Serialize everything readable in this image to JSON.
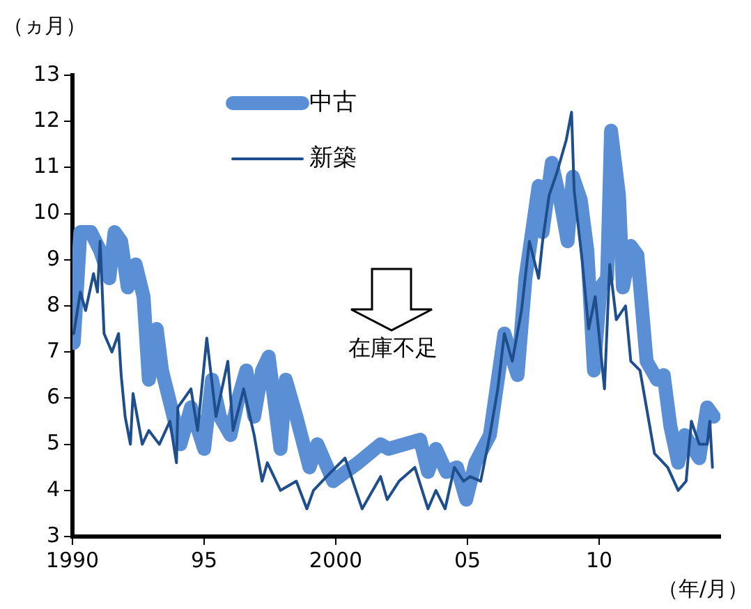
{
  "chart_data": {
    "type": "line",
    "ylabel": "（ヵ月）",
    "xlabel": "（年/月）",
    "annotations": [
      "在庫不足"
    ],
    "xlim": [
      1990,
      2014.6
    ],
    "xticks": [
      1990,
      {
        "value": 1995,
        "label": "95"
      },
      2000,
      {
        "value": 2005,
        "label": "05"
      },
      {
        "value": 2010,
        "label": "10"
      }
    ],
    "ylim": [
      3,
      13
    ],
    "yticks": [
      3,
      4,
      5,
      6,
      7,
      8,
      9,
      10,
      11,
      12,
      13
    ],
    "grid": false,
    "legend": "top left",
    "marker": "none",
    "line_style": "solid",
    "series": [
      {
        "name": "中古",
        "color": "#5a8fd6",
        "x": [
          1990.05,
          1990.3,
          1990.7,
          1991.05,
          1991.4,
          1991.6,
          1991.85,
          1992.1,
          1992.4,
          1992.7,
          1992.9,
          1993.2,
          1993.4,
          1993.75,
          1994.1,
          1994.5,
          1995.0,
          1995.3,
          1995.6,
          1996.0,
          1996.3,
          1996.6,
          1996.9,
          1997.2,
          1997.45,
          1997.9,
          1998.1,
          1998.5,
          1999.0,
          1999.3,
          1999.9,
          2000.85,
          2001.7,
          2002.0,
          2002.6,
          2003.2,
          2003.5,
          2003.8,
          2004.2,
          2004.6,
          2004.95,
          2005.3,
          2005.85,
          2006.4,
          2006.9,
          2007.2,
          2007.45,
          2007.7,
          2007.85,
          2008.2,
          2008.55,
          2008.8,
          2009.0,
          2009.3,
          2009.55,
          2009.8,
          2010.05,
          2010.3,
          2010.45,
          2010.75,
          2010.9,
          2011.2,
          2011.45,
          2011.8,
          2012.2,
          2012.45,
          2012.7,
          2013.0,
          2013.25,
          2013.8,
          2014.1,
          2014.35
        ],
        "values": [
          7.2,
          9.6,
          9.6,
          9.2,
          8.6,
          9.6,
          9.4,
          8.4,
          8.9,
          8.2,
          6.4,
          7.5,
          6.6,
          5.8,
          5.0,
          5.8,
          4.9,
          6.4,
          5.6,
          5.2,
          6.0,
          6.6,
          5.6,
          6.6,
          6.9,
          4.9,
          6.4,
          5.6,
          4.5,
          5.0,
          4.2,
          4.6,
          5.0,
          4.9,
          5.0,
          5.1,
          4.4,
          4.9,
          4.4,
          4.5,
          3.8,
          4.6,
          5.2,
          7.4,
          6.5,
          8.6,
          9.6,
          10.6,
          9.6,
          11.1,
          10.2,
          9.4,
          10.8,
          10.3,
          9.2,
          6.6,
          8.4,
          8.6,
          11.8,
          10.4,
          8.4,
          9.3,
          9.1,
          6.8,
          6.4,
          6.5,
          5.4,
          4.6,
          5.2,
          4.7,
          5.8,
          5.6
        ]
      },
      {
        "name": "新築",
        "color": "#1f4e8c",
        "x": [
          1990.05,
          1990.3,
          1990.5,
          1990.8,
          1990.95,
          1991.05,
          1991.2,
          1991.5,
          1991.75,
          1991.85,
          1992.0,
          1992.2,
          1992.3,
          1992.65,
          1992.9,
          1993.3,
          1993.7,
          1993.95,
          1994.0,
          1994.5,
          1994.75,
          1995.1,
          1995.45,
          1995.9,
          1996.1,
          1996.5,
          1996.9,
          1997.2,
          1997.4,
          1997.9,
          1998.5,
          1998.9,
          1999.15,
          1999.65,
          2000.35,
          2001.0,
          2001.7,
          2001.95,
          2002.4,
          2003.0,
          2003.5,
          2003.8,
          2004.15,
          2004.5,
          2004.85,
          2005.1,
          2005.5,
          2005.85,
          2006.15,
          2006.4,
          2006.7,
          2007.05,
          2007.35,
          2007.7,
          2007.85,
          2008.1,
          2008.4,
          2008.75,
          2008.95,
          2009.05,
          2009.35,
          2009.6,
          2009.85,
          2010.2,
          2010.4,
          2010.65,
          2011.0,
          2011.2,
          2011.55,
          2012.1,
          2012.6,
          2013.0,
          2013.3,
          2013.5,
          2013.8,
          2014.1,
          2014.2,
          2014.3
        ],
        "values": [
          7.4,
          8.3,
          7.9,
          8.7,
          8.3,
          9.4,
          7.4,
          7.0,
          7.4,
          6.5,
          5.6,
          5.0,
          6.1,
          5.0,
          5.3,
          5.0,
          5.5,
          4.6,
          5.8,
          6.2,
          5.3,
          7.3,
          5.6,
          6.8,
          5.3,
          6.2,
          5.2,
          4.2,
          4.6,
          4.0,
          4.2,
          3.6,
          4.0,
          4.3,
          4.7,
          3.6,
          4.3,
          3.8,
          4.2,
          4.5,
          3.6,
          4.0,
          3.6,
          4.5,
          4.2,
          4.3,
          4.2,
          5.2,
          6.2,
          7.4,
          6.8,
          7.9,
          9.4,
          8.6,
          9.4,
          10.4,
          10.9,
          11.6,
          12.2,
          10.5,
          9.0,
          7.5,
          8.2,
          6.2,
          8.9,
          7.7,
          8.0,
          6.8,
          6.6,
          4.8,
          4.5,
          4.0,
          4.2,
          5.5,
          5.0,
          5.0,
          5.5,
          4.5
        ]
      }
    ]
  }
}
